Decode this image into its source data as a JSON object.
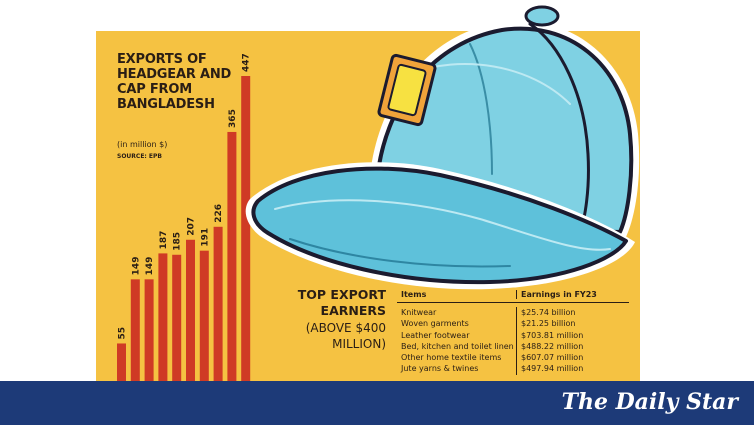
{
  "chart_data": {
    "type": "bar",
    "title": "EXPORTS OF HEADGEAR AND CAP FROM BANGLADESH",
    "unit": "(in million $)",
    "source": "SOURCE: EPB",
    "values": [
      55,
      149,
      149,
      187,
      185,
      207,
      191,
      226,
      365,
      447
    ],
    "bar_color": "#cf3a25",
    "background_color": "#f5c242"
  },
  "earners": {
    "title": "TOP EXPORT EARNERS",
    "subtitle": "(ABOVE $400 MILLION)",
    "header_items": "Items",
    "header_earnings": "Earnings in FY23",
    "rows": [
      {
        "item": "Knitwear",
        "value": "$25.74 billion"
      },
      {
        "item": "Woven garments",
        "value": "$21.25 billion"
      },
      {
        "item": "Leather footwear",
        "value": "$703.81 million"
      },
      {
        "item": "Bed, kitchen and toilet linen",
        "value": "$488.22 million"
      },
      {
        "item": "Other home textile items",
        "value": "$607.07 million"
      },
      {
        "item": "Jute yarns & twines",
        "value": "$497.94 million"
      }
    ]
  },
  "footer": {
    "logo": "The Daily Star",
    "color": "#1d3a78"
  },
  "icons": {
    "illustration": "baseball-cap-icon"
  }
}
